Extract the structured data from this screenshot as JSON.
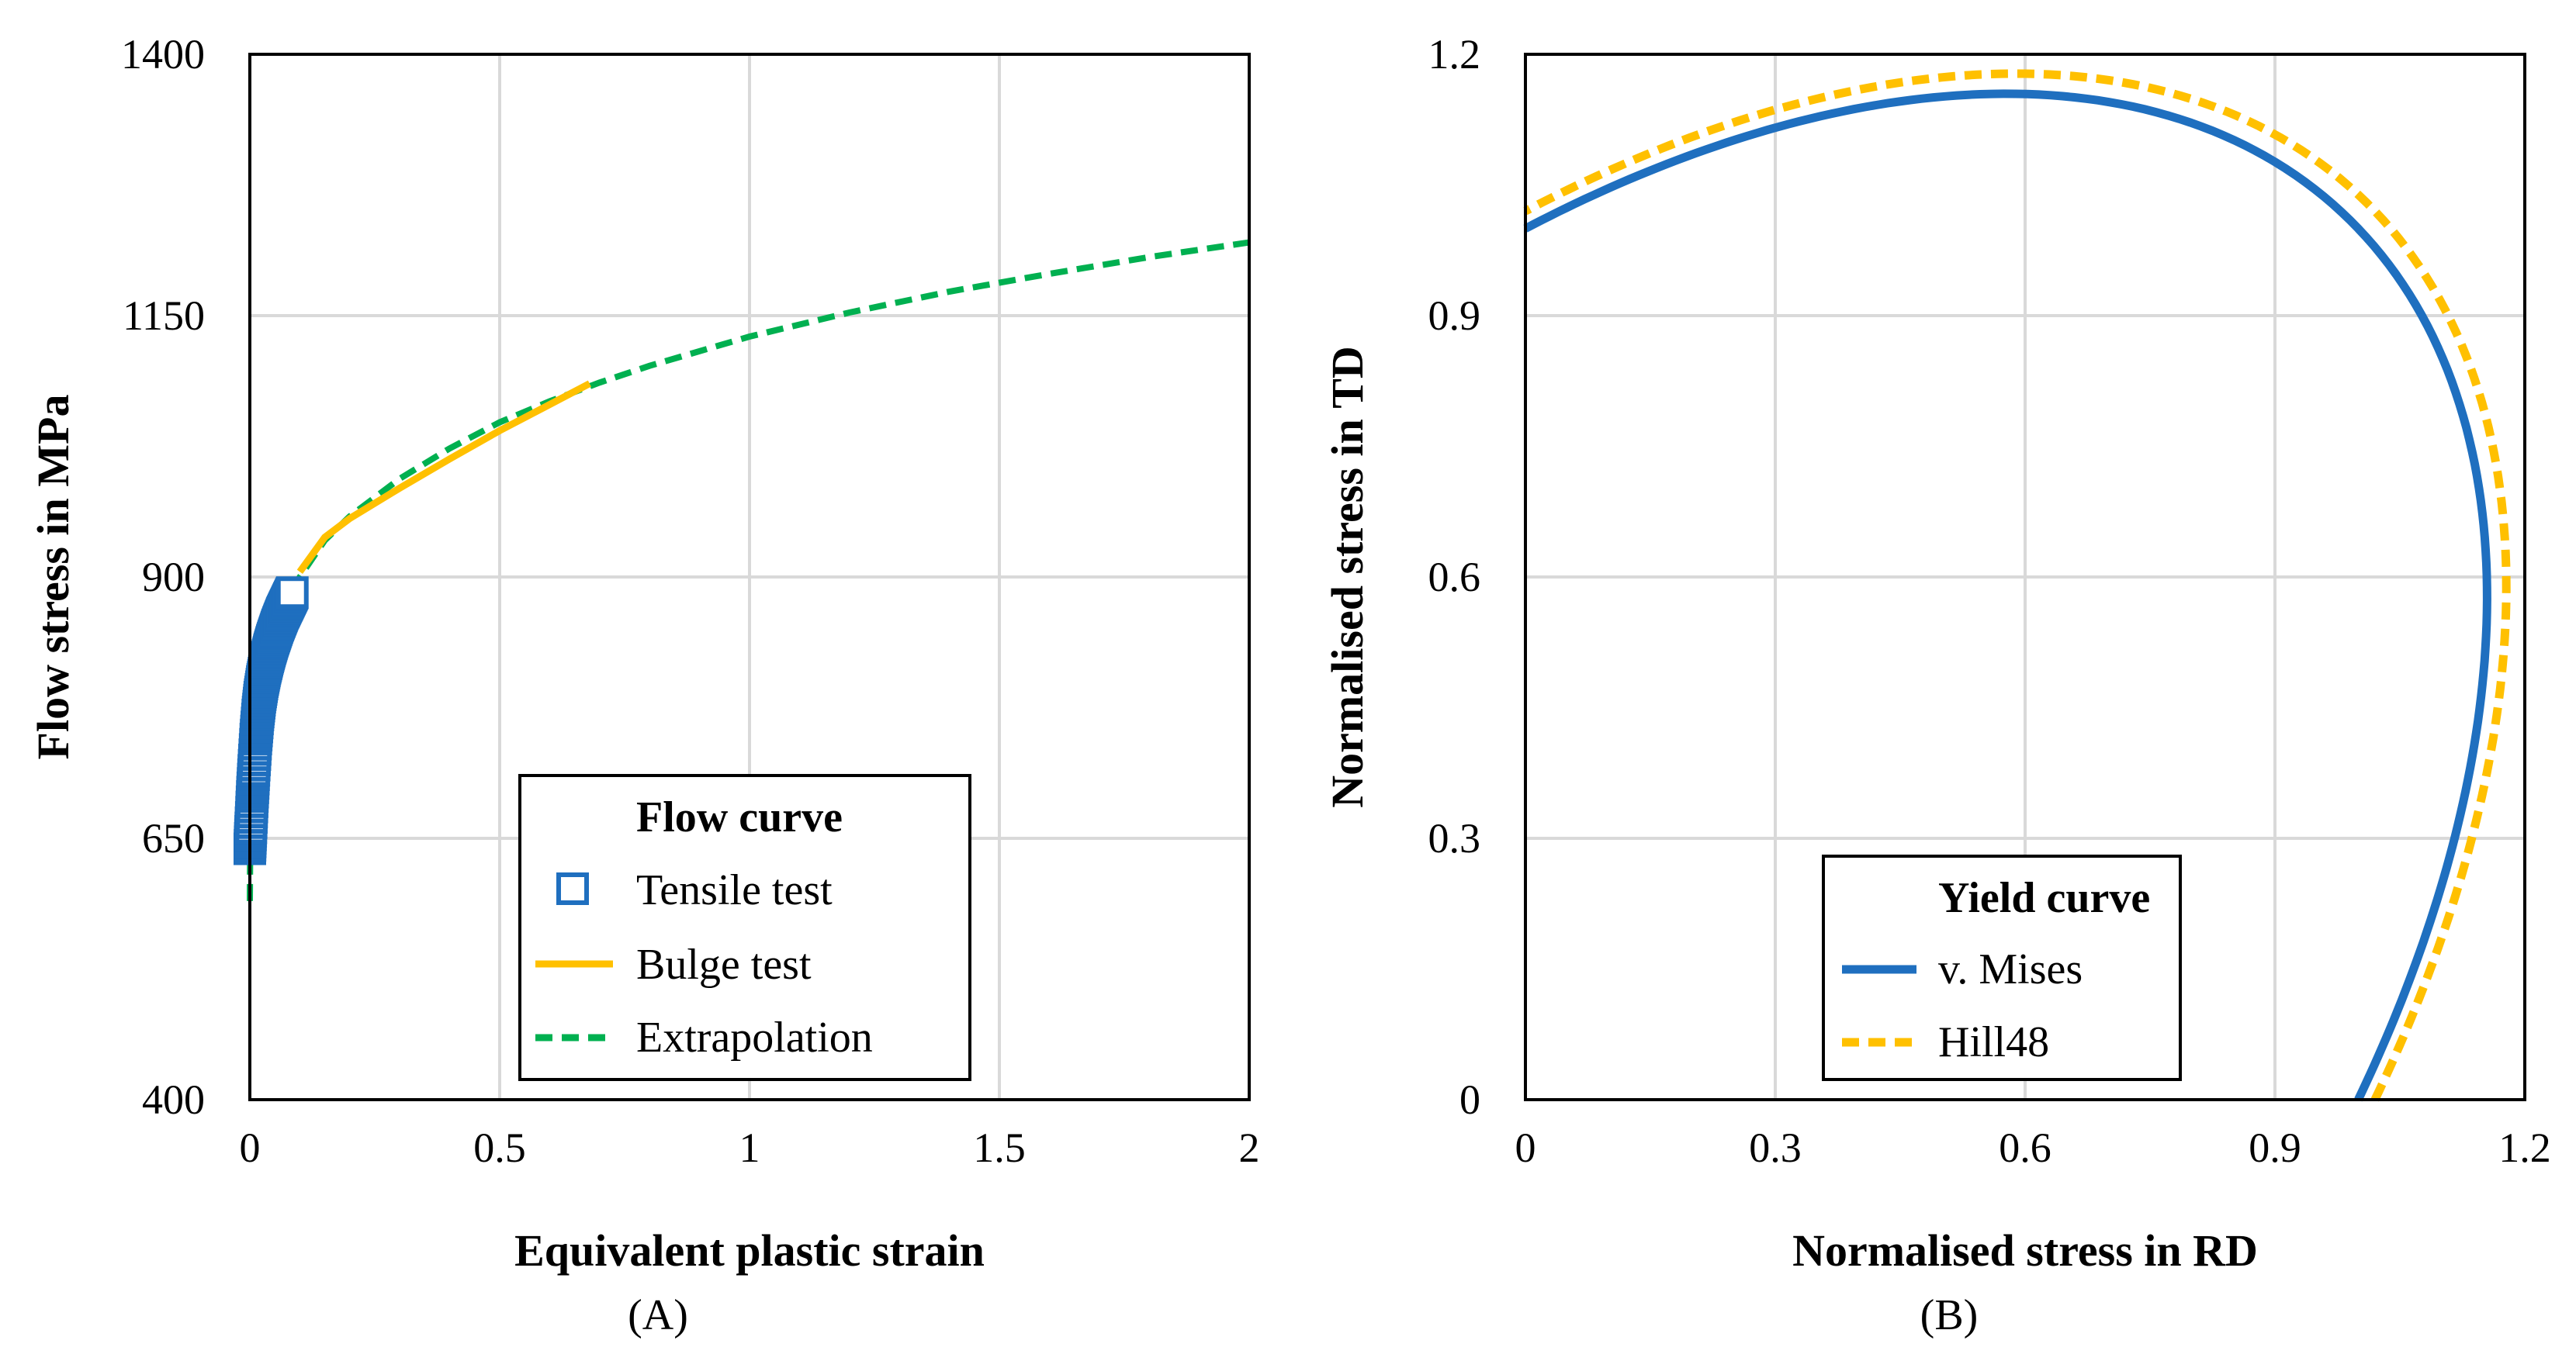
{
  "chart_data": [
    {
      "type": "line",
      "panel_label": "(A)",
      "xlabel": "Equivalent plastic strain",
      "ylabel": "Flow stress  in MPa",
      "xlim": [
        0,
        2
      ],
      "ylim": [
        400,
        1400
      ],
      "xticks": [
        0,
        0.5,
        1,
        1.5,
        2
      ],
      "xtick_labels": [
        "0",
        "0.5",
        "1",
        "1.5",
        "2"
      ],
      "yticks": [
        400,
        650,
        900,
        1150,
        1400
      ],
      "ytick_labels": [
        "400",
        "650",
        "900",
        "1150",
        "1400"
      ],
      "grid": true,
      "legend": {
        "title": "Flow curve",
        "position": "bottom-right",
        "entries": [
          "Tensile test",
          "Bulge test",
          "Extrapolation"
        ]
      },
      "series": [
        {
          "name": "Tensile test",
          "style": "square-markers",
          "color": "#1f6fbf",
          "x": [
            0,
            0.002,
            0.005,
            0.008,
            0.012,
            0.016,
            0.02,
            0.025,
            0.03,
            0.035,
            0.04,
            0.045,
            0.05,
            0.055,
            0.06,
            0.065,
            0.07,
            0.075,
            0.08,
            0.085
          ],
          "y": [
            640,
            660,
            690,
            715,
            745,
            768,
            785,
            800,
            812,
            822,
            831,
            839,
            846,
            853,
            859,
            865,
            870,
            875,
            880,
            885
          ]
        },
        {
          "name": "Bulge test",
          "style": "solid",
          "color": "#ffc000",
          "x": [
            0.1,
            0.15,
            0.2,
            0.3,
            0.4,
            0.5,
            0.6,
            0.68
          ],
          "y": [
            905,
            938,
            956,
            985,
            1013,
            1040,
            1065,
            1085
          ]
        },
        {
          "name": "Extrapolation",
          "style": "dashed",
          "color": "#00b050",
          "x": [
            0,
            0.001,
            0.002,
            0.005,
            0.01,
            0.02,
            0.05,
            0.1,
            0.15,
            0.2,
            0.3,
            0.4,
            0.5,
            0.6,
            0.7,
            0.8,
            1.0,
            1.2,
            1.4,
            1.6,
            1.8,
            2.0
          ],
          "y": [
            590,
            660,
            690,
            720,
            750,
            790,
            850,
            900,
            935,
            958,
            994,
            1023,
            1048,
            1068,
            1086,
            1102,
            1130,
            1153,
            1173,
            1190,
            1206,
            1220
          ]
        }
      ]
    },
    {
      "type": "line",
      "panel_label": "(B)",
      "xlabel": "Normalised stress in RD",
      "ylabel": "Normalised stress in TD",
      "xlim": [
        0,
        1.2
      ],
      "ylim": [
        0,
        1.2
      ],
      "xticks": [
        0,
        0.3,
        0.6,
        0.9,
        1.2
      ],
      "xtick_labels": [
        "0",
        "0.3",
        "0.6",
        "0.9",
        "1.2"
      ],
      "yticks": [
        0,
        0.3,
        0.6,
        0.9,
        1.2
      ],
      "ytick_labels": [
        "0",
        "0.3",
        "0.6",
        "0.9",
        "1.2"
      ],
      "grid": true,
      "legend": {
        "title": "Yield curve",
        "position": "bottom-right",
        "entries": [
          "v. Mises",
          "Hill48"
        ]
      },
      "series": [
        {
          "name": "v. Mises",
          "style": "solid",
          "color": "#1f6fbf",
          "r": 1.0
        },
        {
          "name": "Hill48",
          "style": "dashed",
          "color": "#ffc000",
          "r": 1.02
        }
      ]
    }
  ]
}
